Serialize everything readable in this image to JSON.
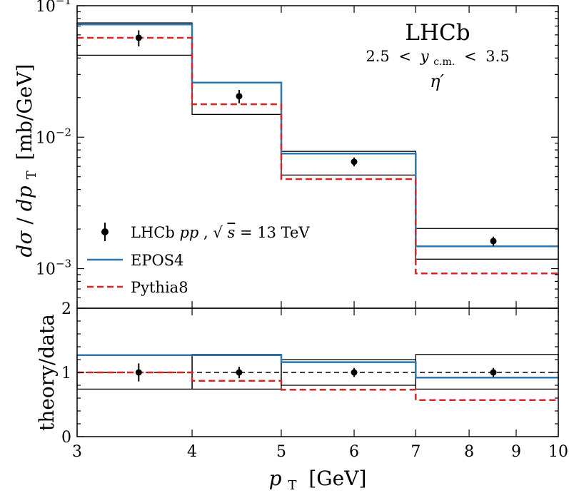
{
  "colors": {
    "epos": "#2b78b1",
    "pythia": "#d62728",
    "data": "#000000",
    "band": "#000000"
  },
  "chart_data": {
    "type": "line",
    "title": "",
    "annotations": {
      "experiment": "LHCb",
      "rapidity_lo": "2.5",
      "rapidity_sym": "y",
      "rapidity_sub": "c.m.",
      "rapidity_hi": "3.5",
      "particle": "η′",
      "lt": "<"
    },
    "xlabel": {
      "symbol": "p",
      "sub": "T",
      "unit": "[GeV]"
    },
    "x_scale": "log",
    "xlim": [
      3,
      10
    ],
    "x_ticks": [
      3,
      4,
      5,
      6,
      7,
      8,
      9,
      10
    ],
    "x_tick_labels": [
      "3",
      "4",
      "5",
      "6",
      "7",
      "8",
      "9",
      "10"
    ],
    "bin_edges": [
      3,
      4,
      5,
      7,
      10
    ],
    "top_panel": {
      "ylabel": {
        "num": "dσ",
        "den": "dp",
        "sub": "T",
        "unit": "[mb/GeV]"
      },
      "y_scale": "log",
      "ylim": [
        0.0005,
        0.1
      ],
      "major_ticks": [
        {
          "value": 0.1,
          "base": "10",
          "exp": "−1"
        },
        {
          "value": 0.01,
          "base": "10",
          "exp": "−2"
        },
        {
          "value": 0.001,
          "base": "10",
          "exp": "−3"
        }
      ],
      "series": [
        {
          "name": "LHCb pp, √s = 13 TeV",
          "kind": "points",
          "x": [
            3.5,
            4.5,
            6.0,
            8.5
          ],
          "y": [
            0.057,
            0.0205,
            0.0065,
            0.00162
          ],
          "yerr": [
            0.008,
            0.0024,
            0.0005,
            0.00013
          ]
        },
        {
          "name": "EPOS4",
          "kind": "step",
          "values": [
            0.072,
            0.026,
            0.0075,
            0.00148
          ]
        },
        {
          "name": "Pythia8",
          "kind": "step-dashed",
          "values": [
            0.057,
            0.0178,
            0.0048,
            0.00092
          ]
        }
      ],
      "epos_band": {
        "upper": [
          0.074,
          0.0262,
          0.0078,
          0.00202
        ],
        "lower": [
          0.042,
          0.0149,
          0.00515,
          0.00118
        ]
      }
    },
    "bottom_panel": {
      "ylabel": "theory/data",
      "y_scale": "linear",
      "ylim": [
        0,
        2
      ],
      "y_ticks": [
        0,
        1,
        2
      ],
      "y_tick_labels": [
        "0",
        "1",
        "2"
      ],
      "reference_line": 1.0,
      "data_points": {
        "x": [
          3.5,
          4.5,
          6.0,
          8.5
        ],
        "y": [
          1.0,
          1.0,
          1.0,
          1.0
        ],
        "yerr": [
          0.14,
          0.09,
          0.07,
          0.07
        ]
      },
      "epos_ratio": [
        1.27,
        1.27,
        1.16,
        0.92
      ],
      "pythia_ratio": [
        1.0,
        0.87,
        0.73,
        0.57
      ],
      "band": {
        "upper": [
          1.27,
          1.28,
          1.2,
          1.28
        ],
        "lower": [
          0.74,
          0.74,
          0.8,
          0.74
        ]
      }
    },
    "legend": {
      "location": "lower-left of top panel",
      "data_label": {
        "prefix": "LHCb ",
        "pp": "pp",
        "sep": ", ",
        "sqrt": "√",
        "s": "s",
        "eq": " = 13 TeV"
      },
      "epos_label": "EPOS4",
      "pythia_label": "Pythia8"
    }
  }
}
